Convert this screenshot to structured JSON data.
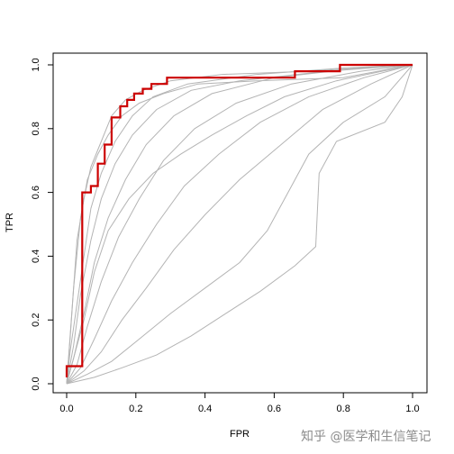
{
  "chart_data": {
    "type": "line",
    "xlabel": "FPR",
    "ylabel": "TPR",
    "xlim": [
      0,
      1
    ],
    "ylim": [
      0,
      1
    ],
    "xticks": [
      "0.0",
      "0.2",
      "0.4",
      "0.6",
      "0.8",
      "1.0"
    ],
    "yticks": [
      "0.0",
      "0.2",
      "0.4",
      "0.6",
      "0.8",
      "1.0"
    ],
    "grid": false,
    "legend": "none",
    "colors": {
      "highlight": "#cc0000",
      "background_curves": "#b4b4b4"
    },
    "series": [
      {
        "color": "#cc0000",
        "highlight": true,
        "points": [
          [
            0,
            0.02
          ],
          [
            0,
            0.055
          ],
          [
            0.045,
            0.055
          ],
          [
            0.045,
            0.6
          ],
          [
            0.07,
            0.6
          ],
          [
            0.07,
            0.62
          ],
          [
            0.09,
            0.62
          ],
          [
            0.09,
            0.69
          ],
          [
            0.11,
            0.69
          ],
          [
            0.11,
            0.75
          ],
          [
            0.13,
            0.75
          ],
          [
            0.13,
            0.835
          ],
          [
            0.155,
            0.835
          ],
          [
            0.155,
            0.87
          ],
          [
            0.175,
            0.87
          ],
          [
            0.175,
            0.89
          ],
          [
            0.195,
            0.89
          ],
          [
            0.195,
            0.91
          ],
          [
            0.22,
            0.91
          ],
          [
            0.22,
            0.925
          ],
          [
            0.245,
            0.925
          ],
          [
            0.245,
            0.94
          ],
          [
            0.29,
            0.94
          ],
          [
            0.29,
            0.96
          ],
          [
            0.33,
            0.96
          ],
          [
            0.66,
            0.96
          ],
          [
            0.66,
            0.98
          ],
          [
            0.79,
            0.98
          ],
          [
            0.79,
            1.0
          ],
          [
            1.0,
            1.0
          ]
        ]
      },
      {
        "color": "#b4b4b4",
        "points": [
          [
            0,
            0
          ],
          [
            0.01,
            0.14
          ],
          [
            0.02,
            0.3
          ],
          [
            0.03,
            0.45
          ],
          [
            0.05,
            0.58
          ],
          [
            0.07,
            0.68
          ],
          [
            0.1,
            0.76
          ],
          [
            0.13,
            0.84
          ],
          [
            0.17,
            0.89
          ],
          [
            0.22,
            0.92
          ],
          [
            0.3,
            0.95
          ],
          [
            0.45,
            0.97
          ],
          [
            0.7,
            0.98
          ],
          [
            1.0,
            1.0
          ]
        ]
      },
      {
        "color": "#b4b4b4",
        "points": [
          [
            0,
            0
          ],
          [
            0.01,
            0.1
          ],
          [
            0.03,
            0.25
          ],
          [
            0.05,
            0.4
          ],
          [
            0.07,
            0.55
          ],
          [
            0.1,
            0.66
          ],
          [
            0.14,
            0.76
          ],
          [
            0.19,
            0.84
          ],
          [
            0.25,
            0.9
          ],
          [
            0.35,
            0.94
          ],
          [
            0.55,
            0.97
          ],
          [
            0.8,
            0.99
          ],
          [
            1.0,
            1.0
          ]
        ]
      },
      {
        "color": "#b4b4b4",
        "points": [
          [
            0,
            0
          ],
          [
            0.02,
            0.12
          ],
          [
            0.04,
            0.28
          ],
          [
            0.07,
            0.45
          ],
          [
            0.1,
            0.58
          ],
          [
            0.14,
            0.69
          ],
          [
            0.19,
            0.78
          ],
          [
            0.26,
            0.86
          ],
          [
            0.36,
            0.92
          ],
          [
            0.5,
            0.95
          ],
          [
            0.75,
            0.98
          ],
          [
            1.0,
            1.0
          ]
        ]
      },
      {
        "color": "#b4b4b4",
        "points": [
          [
            0,
            0
          ],
          [
            0.02,
            0.08
          ],
          [
            0.05,
            0.22
          ],
          [
            0.08,
            0.38
          ],
          [
            0.12,
            0.52
          ],
          [
            0.17,
            0.64
          ],
          [
            0.23,
            0.75
          ],
          [
            0.31,
            0.84
          ],
          [
            0.42,
            0.91
          ],
          [
            0.6,
            0.96
          ],
          [
            0.85,
            0.99
          ],
          [
            1.0,
            1.0
          ]
        ]
      },
      {
        "color": "#b4b4b4",
        "points": [
          [
            0,
            0
          ],
          [
            0.03,
            0.06
          ],
          [
            0.06,
            0.18
          ],
          [
            0.1,
            0.32
          ],
          [
            0.15,
            0.46
          ],
          [
            0.21,
            0.58
          ],
          [
            0.28,
            0.7
          ],
          [
            0.37,
            0.8
          ],
          [
            0.49,
            0.88
          ],
          [
            0.65,
            0.94
          ],
          [
            0.85,
            0.98
          ],
          [
            1.0,
            1.0
          ]
        ]
      },
      {
        "color": "#b4b4b4",
        "points": [
          [
            0,
            0
          ],
          [
            0.04,
            0.05
          ],
          [
            0.08,
            0.14
          ],
          [
            0.13,
            0.26
          ],
          [
            0.19,
            0.38
          ],
          [
            0.26,
            0.5
          ],
          [
            0.34,
            0.62
          ],
          [
            0.44,
            0.72
          ],
          [
            0.56,
            0.82
          ],
          [
            0.7,
            0.9
          ],
          [
            0.86,
            0.96
          ],
          [
            1.0,
            1.0
          ]
        ]
      },
      {
        "color": "#b4b4b4",
        "points": [
          [
            0,
            0
          ],
          [
            0.05,
            0.04
          ],
          [
            0.1,
            0.1
          ],
          [
            0.16,
            0.2
          ],
          [
            0.23,
            0.3
          ],
          [
            0.31,
            0.42
          ],
          [
            0.4,
            0.53
          ],
          [
            0.5,
            0.64
          ],
          [
            0.62,
            0.75
          ],
          [
            0.74,
            0.86
          ],
          [
            0.88,
            0.94
          ],
          [
            1.0,
            1.0
          ]
        ]
      },
      {
        "color": "#b4b4b4",
        "points": [
          [
            0,
            0
          ],
          [
            0.06,
            0.03
          ],
          [
            0.13,
            0.07
          ],
          [
            0.21,
            0.14
          ],
          [
            0.3,
            0.22
          ],
          [
            0.4,
            0.3
          ],
          [
            0.5,
            0.38
          ],
          [
            0.58,
            0.48
          ],
          [
            0.64,
            0.6
          ],
          [
            0.7,
            0.72
          ],
          [
            0.8,
            0.82
          ],
          [
            0.92,
            0.9
          ],
          [
            1.0,
            1.0
          ]
        ]
      },
      {
        "color": "#b4b4b4",
        "points": [
          [
            0,
            0
          ],
          [
            0.08,
            0.02
          ],
          [
            0.16,
            0.05
          ],
          [
            0.26,
            0.09
          ],
          [
            0.36,
            0.15
          ],
          [
            0.46,
            0.22
          ],
          [
            0.56,
            0.29
          ],
          [
            0.66,
            0.37
          ],
          [
            0.72,
            0.43
          ],
          [
            0.73,
            0.66
          ],
          [
            0.78,
            0.76
          ],
          [
            0.92,
            0.82
          ],
          [
            0.97,
            0.9
          ],
          [
            1.0,
            1.0
          ]
        ]
      },
      {
        "color": "#b4b4b4",
        "points": [
          [
            0,
            0
          ],
          [
            0.02,
            0.3
          ],
          [
            0.04,
            0.52
          ],
          [
            0.06,
            0.64
          ],
          [
            0.09,
            0.72
          ],
          [
            0.12,
            0.78
          ],
          [
            0.16,
            0.84
          ],
          [
            0.21,
            0.88
          ],
          [
            0.28,
            0.91
          ],
          [
            0.38,
            0.94
          ],
          [
            0.55,
            0.95
          ],
          [
            0.8,
            0.96
          ],
          [
            1.0,
            1.0
          ]
        ]
      },
      {
        "color": "#b4b4b4",
        "points": [
          [
            0,
            0
          ],
          [
            0.05,
            0.2
          ],
          [
            0.08,
            0.35
          ],
          [
            0.12,
            0.48
          ],
          [
            0.18,
            0.58
          ],
          [
            0.25,
            0.66
          ],
          [
            0.33,
            0.72
          ],
          [
            0.42,
            0.78
          ],
          [
            0.52,
            0.84
          ],
          [
            0.63,
            0.9
          ],
          [
            0.78,
            0.95
          ],
          [
            1.0,
            1.0
          ]
        ]
      }
    ]
  },
  "watermark": "知乎 @医学和生信笔记"
}
